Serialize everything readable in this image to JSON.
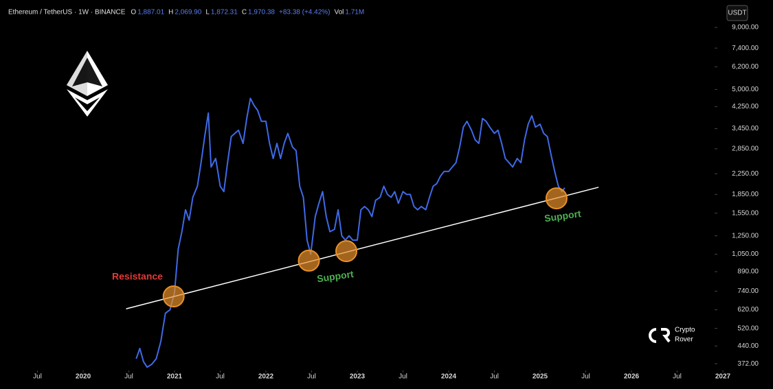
{
  "chart_data": {
    "type": "line",
    "title": "Ethereum / TetherUS · 1W · BINANCE",
    "ohlc": [
      {
        "key": "O",
        "value": 1887.01,
        "label": "1,887.01"
      },
      {
        "key": "H",
        "value": 2069.9,
        "label": "2,069.90"
      },
      {
        "key": "L",
        "value": 1872.31,
        "label": "1,872.31"
      },
      {
        "key": "C",
        "value": 1970.38,
        "label": "1,970.38"
      }
    ],
    "change": "+83.38 (+4.42%)",
    "volume": {
      "key": "Vol",
      "label": "1.71M"
    },
    "currency": "USDT",
    "brand": [
      "Crypto",
      "Rover"
    ],
    "log_scale": true,
    "xlim": [
      2019.09,
      2026.91
    ],
    "ylim": [
      349,
      11300
    ],
    "xticks": [
      {
        "value": 2019.5,
        "label": "Jul"
      },
      2020,
      {
        "value": 2020.5,
        "label": "Jul"
      },
      2021,
      {
        "value": 2021.5,
        "label": "Jul"
      },
      2022,
      {
        "value": 2022.5,
        "label": "Jul"
      },
      2023,
      {
        "value": 2023.5,
        "label": "Jul"
      },
      2024,
      {
        "value": 2024.5,
        "label": "Jul"
      },
      2025,
      {
        "value": 2025.5,
        "label": "Jul"
      },
      2026,
      {
        "value": 2026.5,
        "label": "Jul"
      },
      2027
    ],
    "yticks": [
      {
        "value": 372,
        "label": "372.00"
      },
      {
        "value": 440,
        "label": "440.00"
      },
      {
        "value": 520,
        "label": "520.00"
      },
      {
        "value": 620,
        "label": "620.00"
      },
      {
        "value": 740,
        "label": "740.00"
      },
      {
        "value": 890,
        "label": "890.00"
      },
      {
        "value": 1050,
        "label": "1,050.00"
      },
      {
        "value": 1250,
        "label": "1,250.00"
      },
      {
        "value": 1550,
        "label": "1,550.00"
      },
      {
        "value": 1850,
        "label": "1,850.00"
      },
      {
        "value": 2250,
        "label": "2,250.00"
      },
      {
        "value": 2850,
        "label": "2,850.00"
      },
      {
        "value": 3450,
        "label": "3,450.00"
      },
      {
        "value": 4250,
        "label": "4,250.00"
      },
      {
        "value": 5000,
        "label": "5,000.00"
      },
      {
        "value": 6200,
        "label": "6,200.00"
      },
      {
        "value": 7400,
        "label": "7,400.00"
      },
      {
        "value": 9000,
        "label": "9,000.00"
      }
    ],
    "x": [
      2020.58,
      2020.62,
      2020.66,
      2020.7,
      2020.75,
      2020.8,
      2020.85,
      2020.9,
      2020.95,
      2021.0,
      2021.04,
      2021.08,
      2021.12,
      2021.16,
      2021.2,
      2021.25,
      2021.29,
      2021.33,
      2021.37,
      2021.4,
      2021.45,
      2021.5,
      2021.54,
      2021.58,
      2021.62,
      2021.66,
      2021.7,
      2021.75,
      2021.79,
      2021.83,
      2021.87,
      2021.91,
      2021.95,
      2022.0,
      2022.04,
      2022.08,
      2022.12,
      2022.16,
      2022.2,
      2022.24,
      2022.29,
      2022.33,
      2022.37,
      2022.41,
      2022.45,
      2022.49,
      2022.54,
      2022.58,
      2022.62,
      2022.66,
      2022.7,
      2022.75,
      2022.79,
      2022.83,
      2022.87,
      2022.91,
      2022.95,
      2023.0,
      2023.04,
      2023.08,
      2023.12,
      2023.16,
      2023.2,
      2023.25,
      2023.29,
      2023.33,
      2023.37,
      2023.41,
      2023.45,
      2023.5,
      2023.54,
      2023.58,
      2023.62,
      2023.66,
      2023.7,
      2023.75,
      2023.79,
      2023.83,
      2023.87,
      2023.91,
      2023.95,
      2024.0,
      2024.04,
      2024.08,
      2024.12,
      2024.16,
      2024.2,
      2024.25,
      2024.29,
      2024.33,
      2024.37,
      2024.41,
      2024.45,
      2024.5,
      2024.54,
      2024.58,
      2024.62,
      2024.66,
      2024.7,
      2024.75,
      2024.79,
      2024.83,
      2024.87,
      2024.91,
      2024.95,
      2025.0,
      2025.04,
      2025.08,
      2025.12,
      2025.16,
      2025.2,
      2025.24,
      2025.27
    ],
    "series": [
      {
        "name": "ETHUSDT",
        "color": "#3f6ae8",
        "values": [
          390,
          430,
          380,
          360,
          370,
          390,
          460,
          600,
          620,
          730,
          1100,
          1300,
          1600,
          1450,
          1800,
          2000,
          2500,
          3200,
          4000,
          2400,
          2600,
          2000,
          1900,
          2500,
          3200,
          3300,
          3400,
          3000,
          3800,
          4600,
          4300,
          4100,
          3700,
          3700,
          3000,
          2600,
          3000,
          2600,
          3000,
          3300,
          2900,
          2800,
          2000,
          1800,
          1200,
          1050,
          1500,
          1700,
          1900,
          1500,
          1300,
          1330,
          1600,
          1250,
          1200,
          1250,
          1200,
          1200,
          1600,
          1650,
          1600,
          1500,
          1750,
          1800,
          2000,
          1850,
          1800,
          1900,
          1700,
          1900,
          1850,
          1850,
          1650,
          1600,
          1650,
          1600,
          1800,
          2000,
          2050,
          2200,
          2300,
          2300,
          2400,
          2500,
          2900,
          3500,
          3700,
          3400,
          3100,
          3000,
          3800,
          3700,
          3500,
          3300,
          3400,
          3000,
          2600,
          2500,
          2400,
          2600,
          2500,
          3100,
          3600,
          3900,
          3500,
          3600,
          3300,
          3200,
          2700,
          2300,
          2000,
          1900,
          1970
        ]
      }
    ],
    "trendline": {
      "x": [
        2020.47,
        2025.64
      ],
      "values": [
        626,
        1980
      ],
      "color": "#ffffff"
    },
    "highlights": {
      "x": [
        2020.99,
        2022.47,
        2022.88,
        2025.18
      ],
      "values": [
        704,
        988,
        1081,
        1783
      ],
      "color": "#e8902a"
    },
    "annotations": [
      {
        "text": "Resistance",
        "color": "#e53935"
      },
      {
        "text": "Support",
        "color": "#4caf50"
      },
      {
        "text": "Support",
        "color": "#4caf50"
      }
    ]
  }
}
